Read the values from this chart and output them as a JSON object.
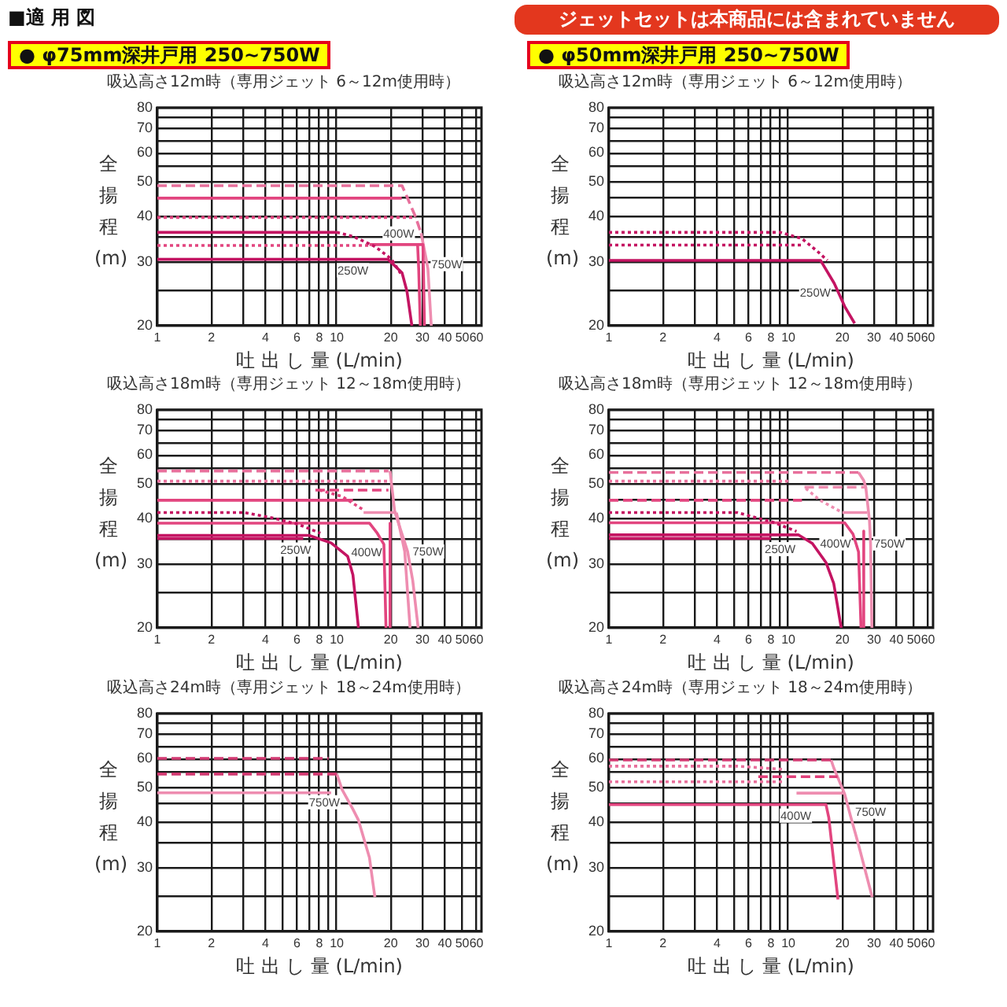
{
  "chart_data": [
    {
      "type": "line",
      "title": "吸込高さ12m時（専用ジェット 6～12m使用時）",
      "subtitle": "● φ75mm深井戸用 250~750W",
      "xlabel": "吐 出 し 量 (L/min)",
      "ylabel": "全揚程(m)",
      "annotations": [
        "■適 用 図",
        {
          "text": "250W",
          "x": 12.3,
          "y": 30.5
        },
        {
          "text": "750W",
          "x": 32.2,
          "y": 28.7
        },
        {
          "text": "400W",
          "x": 24,
          "y": 33.5
        }
      ],
      "xlim": [
        1,
        64
      ],
      "ylim": [
        20,
        80
      ],
      "xticks": [
        1,
        2,
        {
          "value": 3,
          "label": null
        },
        4,
        {
          "value": 5,
          "label": null
        },
        6,
        {
          "value": 7,
          "label": null
        },
        8,
        {
          "value": 9,
          "label": null
        },
        10,
        20,
        30,
        40,
        50,
        60
      ],
      "yticks": [
        20,
        {
          "value": 25,
          "label": null
        },
        30,
        {
          "value": 35,
          "label": null
        },
        40,
        {
          "value": 45,
          "label": null
        },
        50,
        {
          "value": 55,
          "label": null
        },
        60,
        {
          "value": 65,
          "label": null
        },
        70,
        {
          "value": 75,
          "label": null
        },
        80
      ],
      "log": "xy",
      "grid": true,
      "marker": "none",
      "series": [
        {
          "color": "#e8709c",
          "line_style": "dashed",
          "x": [
            1,
            23.1,
            24.6,
            27.5,
            29.5
          ],
          "values": [
            48.7,
            48.7,
            45.4,
            39.9,
            36
          ]
        },
        {
          "color": "#e2457f",
          "line_style": "solid",
          "x": [
            1,
            23
          ],
          "values": [
            45,
            45
          ]
        },
        {
          "color": "#e2457f",
          "line_style": "dotted",
          "x": [
            1,
            27.5
          ],
          "values": [
            39.8,
            39.8
          ]
        },
        {
          "color": "#c41462",
          "line_style": "solid",
          "x": [
            1,
            10
          ],
          "values": [
            36.2,
            36.2
          ]
        },
        {
          "color": "#c41462",
          "line_style": "dotted",
          "x": [
            10,
            12.3,
            16.3,
            20.1,
            23.1
          ],
          "values": [
            36.2,
            35.3,
            33.1,
            30.6,
            27.5
          ]
        },
        {
          "color": "#e2457f",
          "line_style": "dotted",
          "x": [
            1,
            15.2
          ],
          "values": [
            33.3,
            33.3
          ]
        },
        {
          "color": "#e2457f",
          "line_style": "solid",
          "x": [
            15.2,
            28.2,
            28.6,
            29.2
          ],
          "values": [
            33.5,
            33.5,
            28.7,
            20
          ]
        },
        {
          "color": "#e2457f",
          "line_style": "solid",
          "x": [
            28.2,
            30.2,
            30.8
          ],
          "values": [
            33.5,
            33.5,
            20
          ]
        },
        {
          "color": "#c41462",
          "line_style": "solid",
          "x": [
            1,
            19.3,
            23.1,
            24.6,
            26.2
          ],
          "values": [
            30.5,
            30.5,
            28,
            24.9,
            20
          ]
        },
        {
          "color": "#ee8db0",
          "line_style": "solid",
          "x": [
            29.5,
            31.5,
            32.2,
            33.6
          ],
          "values": [
            36,
            30.5,
            28.7,
            20
          ]
        }
      ]
    },
    {
      "type": "line",
      "title": "吸込高さ12m時（専用ジェット 6～12m使用時）",
      "subtitle": "● φ50mm深井戸用 250~750W",
      "xlabel": "吐 出 し 量 (L/min)",
      "ylabel": "全揚程(m)",
      "annotations": [
        "ジェットセットは本商品には含まれていません",
        {
          "text": "250W",
          "x": 18,
          "y": 26.2
        }
      ],
      "xlim": [
        1,
        64
      ],
      "ylim": [
        20,
        80
      ],
      "xticks": [
        1,
        2,
        {
          "value": 3,
          "label": null
        },
        4,
        {
          "value": 5,
          "label": null
        },
        6,
        {
          "value": 7,
          "label": null
        },
        8,
        {
          "value": 9,
          "label": null
        },
        10,
        20,
        30,
        40,
        50,
        60
      ],
      "yticks": [
        20,
        {
          "value": 25,
          "label": null
        },
        30,
        {
          "value": 35,
          "label": null
        },
        40,
        {
          "value": 45,
          "label": null
        },
        50,
        {
          "value": 55,
          "label": null
        },
        60,
        {
          "value": 65,
          "label": null
        },
        70,
        {
          "value": 75,
          "label": null
        },
        80
      ],
      "log": "xy",
      "grid": true,
      "marker": "none",
      "series": [
        {
          "color": "#c41462",
          "line_style": "dotted",
          "x": [
            1,
            9,
            11.9,
            14.6,
            16.5
          ],
          "values": [
            36.2,
            36.2,
            34.8,
            32,
            30.3
          ]
        },
        {
          "color": "#c41462",
          "line_style": "dotted",
          "x": [
            1,
            11.9
          ],
          "values": [
            33.4,
            33.4
          ]
        },
        {
          "color": "#c41462",
          "line_style": "solid",
          "x": [
            1,
            15.1,
            18,
            20.6,
            23.4
          ],
          "values": [
            30.3,
            30.3,
            26.2,
            22.6,
            20.3
          ]
        }
      ]
    },
    {
      "type": "line",
      "title": "吸込高さ18m時（専用ジェット 12～18m使用時）",
      "xlabel": "吐 出 し 量 (L/min)",
      "ylabel": "全揚程(m)",
      "annotations": [
        {
          "text": "250W",
          "x": 5.9,
          "y": 35.3
        },
        {
          "text": "400W",
          "x": 18.3,
          "y": 34
        },
        {
          "text": "750W",
          "x": 24.8,
          "y": 32.5
        }
      ],
      "xlim": [
        1,
        64
      ],
      "ylim": [
        20,
        80
      ],
      "xticks": [
        1,
        2,
        {
          "value": 3,
          "label": null
        },
        4,
        {
          "value": 5,
          "label": null
        },
        6,
        {
          "value": 7,
          "label": null
        },
        8,
        {
          "value": 9,
          "label": null
        },
        10,
        20,
        30,
        40,
        50,
        60
      ],
      "yticks": [
        20,
        {
          "value": 25,
          "label": null
        },
        30,
        {
          "value": 35,
          "label": null
        },
        40,
        {
          "value": 45,
          "label": null
        },
        50,
        {
          "value": 55,
          "label": null
        },
        60,
        {
          "value": 65,
          "label": null
        },
        70,
        {
          "value": 75,
          "label": null
        },
        80
      ],
      "log": "xy",
      "grid": true,
      "marker": "none",
      "series": [
        {
          "color": "#e8709c",
          "line_style": "dashed",
          "x": [
            1,
            19.4
          ],
          "values": [
            54.2,
            54.2
          ]
        },
        {
          "color": "#e8709c",
          "line_style": "dotted",
          "x": [
            1,
            19.4
          ],
          "values": [
            50.8,
            50.8
          ]
        },
        {
          "color": "#ee8db0",
          "line_style": "solid",
          "x": [
            19.8,
            21,
            24.8,
            26.5,
            28.4
          ],
          "values": [
            54.2,
            42,
            32.5,
            27,
            20
          ]
        },
        {
          "color": "#ee8db0",
          "line_style": "solid",
          "x": [
            21.5,
            23.9,
            25.6
          ],
          "values": [
            41.6,
            32.5,
            20
          ]
        },
        {
          "color": "#e2457f",
          "line_style": "dashed",
          "x": [
            7.6,
            19.4
          ],
          "values": [
            48,
            48
          ]
        },
        {
          "color": "#e2457f",
          "line_style": "dotted",
          "x": [
            8,
            10.7,
            14.1
          ],
          "values": [
            48,
            46.1,
            42.3
          ]
        },
        {
          "color": "#e2457f",
          "line_style": "solid",
          "x": [
            1,
            12.3
          ],
          "values": [
            45,
            45
          ]
        },
        {
          "color": "#ee8db0",
          "line_style": "solid",
          "x": [
            14.1,
            21.5
          ],
          "values": [
            41.6,
            41.6
          ]
        },
        {
          "color": "#c41462",
          "line_style": "dotted",
          "x": [
            1,
            3.05,
            4.3,
            6.1,
            8.1
          ],
          "values": [
            41.6,
            41.6,
            40.3,
            38.6,
            36.5
          ]
        },
        {
          "color": "#e2457f",
          "line_style": "solid",
          "x": [
            1,
            15.2,
            16.8,
            18.3,
            18.8
          ],
          "values": [
            38.9,
            38.9,
            36.5,
            34,
            20
          ]
        },
        {
          "color": "#e2457f",
          "line_style": "solid",
          "x": [
            19.8,
            19.8
          ],
          "values": [
            38.9,
            20
          ]
        },
        {
          "color": "#c41462",
          "line_style": "solid",
          "x": [
            1,
            7,
            9.3,
            11.5,
            12.3,
            13.2
          ],
          "values": [
            36,
            36,
            34.3,
            31.5,
            28,
            20
          ]
        },
        {
          "color": "#c41462",
          "line_style": "solid",
          "x": [
            1,
            6.5
          ],
          "values": [
            35.3,
            35.3
          ]
        }
      ]
    },
    {
      "type": "line",
      "title": "吸込高さ18m時（専用ジェット 12～18m使用時）",
      "xlabel": "吐 出 し 量 (L/min)",
      "ylabel": "全揚程(m)",
      "annotations": [
        {
          "text": "250W",
          "x": 9,
          "y": 36.1
        },
        {
          "text": "400W",
          "x": 23.8,
          "y": 34.2
        },
        {
          "text": "750W",
          "x": 28.7,
          "y": 34.2
        }
      ],
      "xlim": [
        1,
        64
      ],
      "ylim": [
        20,
        80
      ],
      "xticks": [
        1,
        2,
        {
          "value": 3,
          "label": null
        },
        4,
        {
          "value": 5,
          "label": null
        },
        6,
        {
          "value": 7,
          "label": null
        },
        8,
        {
          "value": 9,
          "label": null
        },
        10,
        20,
        30,
        40,
        50,
        60
      ],
      "yticks": [
        20,
        {
          "value": 25,
          "label": null
        },
        30,
        {
          "value": 35,
          "label": null
        },
        40,
        {
          "value": 45,
          "label": null
        },
        50,
        {
          "value": 55,
          "label": null
        },
        60,
        {
          "value": 65,
          "label": null
        },
        70,
        {
          "value": 75,
          "label": null
        },
        80
      ],
      "log": "xy",
      "grid": true,
      "marker": "none",
      "series": [
        {
          "color": "#e8709c",
          "line_style": "dashed",
          "x": [
            1,
            24.6
          ],
          "values": [
            53.7,
            53.7
          ]
        },
        {
          "color": "#e8709c",
          "line_style": "dotted",
          "x": [
            1,
            10.4
          ],
          "values": [
            50.8,
            50.8
          ]
        },
        {
          "color": "#ee8db0",
          "line_style": "dashed",
          "x": [
            12.3,
            26.8
          ],
          "values": [
            48.9,
            48.9
          ]
        },
        {
          "color": "#ee8db0",
          "line_style": "dotted",
          "x": [
            12.5,
            15,
            20
          ],
          "values": [
            48.5,
            45,
            41.6
          ]
        },
        {
          "color": "#e2457f",
          "line_style": "dashed",
          "x": [
            1,
            11.9
          ],
          "values": [
            45,
            45
          ]
        },
        {
          "color": "#c41462",
          "line_style": "dotted",
          "x": [
            1,
            5.2,
            8.4,
            11.1
          ],
          "values": [
            41.6,
            41.6,
            39,
            36.9
          ]
        },
        {
          "color": "#ee8db0",
          "line_style": "solid",
          "x": [
            20,
            27.5
          ],
          "values": [
            41.6,
            41.6
          ]
        },
        {
          "color": "#e2457f",
          "line_style": "solid",
          "x": [
            1,
            20.6,
            22.9,
            23.8,
            24.6,
            25.4
          ],
          "values": [
            39,
            39,
            36.3,
            34.2,
            32.4,
            20
          ]
        },
        {
          "color": "#e2457f",
          "line_style": "solid",
          "x": [
            26.3,
            26.3
          ],
          "values": [
            37,
            20
          ]
        },
        {
          "color": "#ee8db0",
          "line_style": "solid",
          "x": [
            24.6,
            26.3,
            27,
            28.3,
            28.7,
            29.2
          ],
          "values": [
            53.7,
            51,
            48.9,
            39.6,
            34.2,
            20
          ]
        },
        {
          "color": "#c41462",
          "line_style": "solid",
          "x": [
            1,
            11.4,
            13.6,
            16.2,
            17.9,
            19.7
          ],
          "values": [
            36.1,
            36.1,
            34.2,
            30.3,
            26.5,
            20
          ]
        },
        {
          "color": "#c41462",
          "line_style": "solid",
          "x": [
            1,
            8
          ],
          "values": [
            35.3,
            35.3
          ]
        }
      ]
    },
    {
      "type": "line",
      "title": "吸込高さ24m時（専用ジェット 18～24m使用時）",
      "xlabel": "吐 出 し 量 (L/min)",
      "ylabel": "全揚程(m)",
      "annotations": [
        {
          "text": "750W",
          "x": 8.7,
          "y": 48.3
        }
      ],
      "xlim": [
        1,
        64
      ],
      "ylim": [
        20,
        80
      ],
      "xticks": [
        1,
        2,
        {
          "value": 3,
          "label": null
        },
        4,
        {
          "value": 5,
          "label": null
        },
        6,
        {
          "value": 7,
          "label": null
        },
        8,
        {
          "value": 9,
          "label": null
        },
        10,
        20,
        30,
        40,
        50,
        60
      ],
      "yticks": [
        20,
        {
          "value": 25,
          "label": null
        },
        30,
        {
          "value": 35,
          "label": null
        },
        40,
        {
          "value": 45,
          "label": null
        },
        50,
        {
          "value": 55,
          "label": null
        },
        60,
        {
          "value": 65,
          "label": null
        },
        70,
        {
          "value": 75,
          "label": null
        },
        80
      ],
      "log": "xy",
      "grid": true,
      "marker": "none",
      "series": [
        {
          "color": "#d23a72",
          "line_style": "dashed",
          "x": [
            1,
            9
          ],
          "values": [
            60.1,
            60.1
          ]
        },
        {
          "color": "#d23a72",
          "line_style": "dashed",
          "x": [
            1,
            10
          ],
          "values": [
            54.4,
            54.4
          ]
        },
        {
          "color": "#ee8db0",
          "line_style": "solid",
          "x": [
            1,
            9.3
          ],
          "values": [
            48.3,
            48.3
          ]
        },
        {
          "color": "#ee8db0",
          "line_style": "solid",
          "x": [
            10,
            10.7,
            12.3,
            13.2,
            15.2,
            16.3
          ],
          "values": [
            54.4,
            49.3,
            43.5,
            40.6,
            32,
            24.9
          ]
        }
      ]
    },
    {
      "type": "line",
      "title": "吸込高さ24m時（専用ジェット 18～24m使用時）",
      "xlabel": "吐 出 し 量 (L/min)",
      "ylabel": "全揚程(m)",
      "annotations": [
        {
          "text": "400W",
          "x": 11,
          "y": 44.8
        },
        {
          "text": "750W",
          "x": 22.1,
          "y": 42
        }
      ],
      "xlim": [
        1,
        64
      ],
      "ylim": [
        20,
        80
      ],
      "xticks": [
        1,
        2,
        {
          "value": 3,
          "label": null
        },
        4,
        {
          "value": 5,
          "label": null
        },
        6,
        {
          "value": 7,
          "label": null
        },
        8,
        {
          "value": 9,
          "label": null
        },
        10,
        20,
        30,
        40,
        50,
        60
      ],
      "yticks": [
        20,
        {
          "value": 25,
          "label": null
        },
        30,
        {
          "value": 35,
          "label": null
        },
        40,
        {
          "value": 45,
          "label": null
        },
        50,
        {
          "value": 55,
          "label": null
        },
        60,
        {
          "value": 65,
          "label": null
        },
        70,
        {
          "value": 75,
          "label": null
        },
        80
      ],
      "log": "xy",
      "grid": true,
      "marker": "none",
      "series": [
        {
          "color": "#d23a72",
          "line_style": "dashed",
          "x": [
            1,
            17.3
          ],
          "values": [
            59.5,
            59.5
          ]
        },
        {
          "color": "#e8709c",
          "line_style": "dotted",
          "x": [
            1,
            5.2,
            9.6
          ],
          "values": [
            57.2,
            57.2,
            56
          ]
        },
        {
          "color": "#e0407a",
          "line_style": "dashed",
          "x": [
            6.8,
            18.8
          ],
          "values": [
            53.5,
            53.5
          ]
        },
        {
          "color": "#e8709c",
          "line_style": "dotted",
          "x": [
            1,
            9.6
          ],
          "values": [
            51.8,
            51.8
          ]
        },
        {
          "color": "#ee8db0",
          "line_style": "solid",
          "x": [
            11.1,
            20.5
          ],
          "values": [
            48.2,
            48.2
          ]
        },
        {
          "color": "#e2457f",
          "line_style": "solid",
          "x": [
            1,
            16.2,
            16.8,
            18.9
          ],
          "values": [
            44.8,
            44.8,
            41.2,
            24.5
          ]
        },
        {
          "color": "#ee8db0",
          "line_style": "solid",
          "x": [
            17.3,
            17.9,
            20.6,
            22.1,
            24.6,
            29.3
          ],
          "values": [
            59.5,
            56.6,
            47.9,
            42,
            34.7,
            24.9
          ]
        }
      ]
    }
  ]
}
